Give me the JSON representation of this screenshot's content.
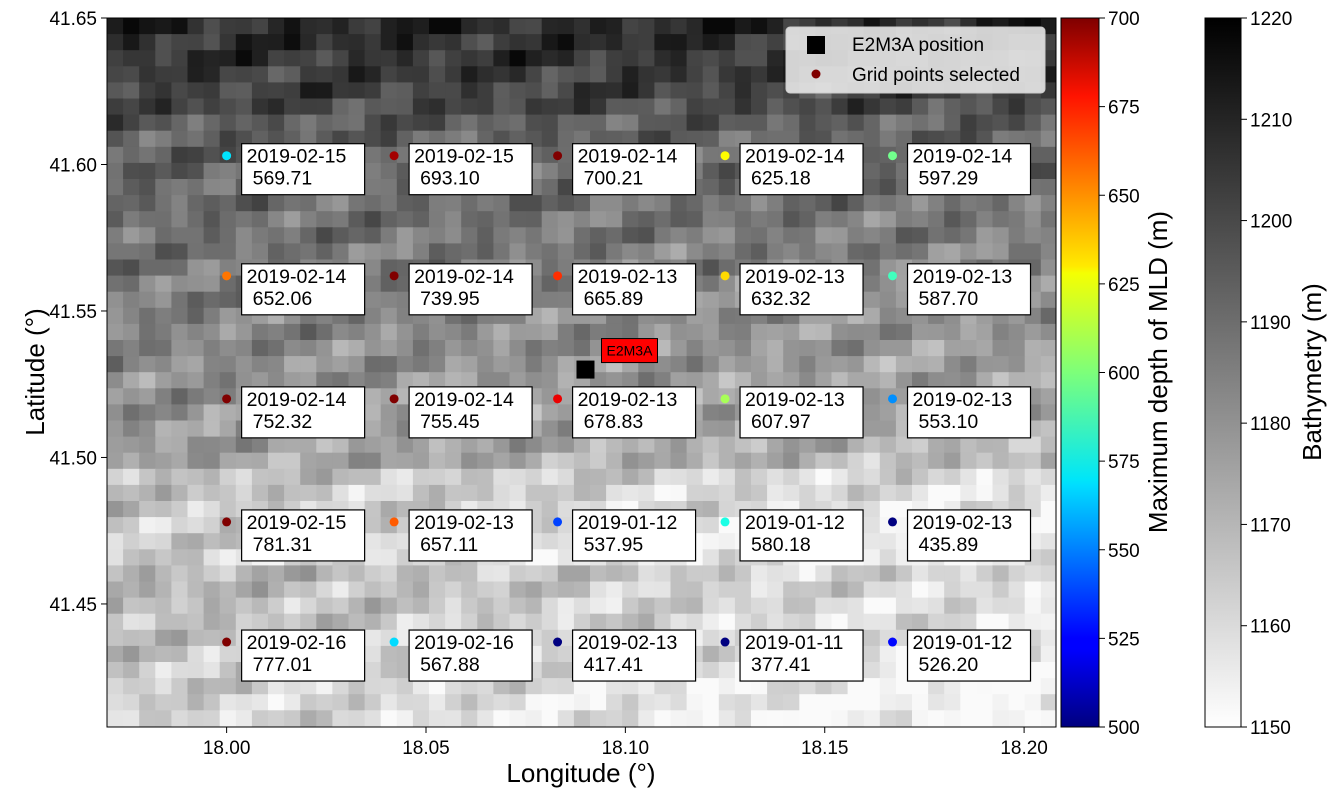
{
  "chart_data": {
    "type": "scatter",
    "title": "",
    "xlabel": "Longitude (°)",
    "ylabel": "Latitude (°)",
    "xlim": [
      17.97,
      18.208
    ],
    "ylim": [
      41.408,
      41.65
    ],
    "x_ticks": [
      "18.00",
      "18.05",
      "18.10",
      "18.15",
      "18.20"
    ],
    "y_ticks": [
      "41.45",
      "41.50",
      "41.55",
      "41.60",
      "41.65"
    ],
    "background": {
      "type": "heatmap",
      "colormap": "gray_r",
      "colorbar_label": "Bathymetry (m)",
      "range": [
        1150,
        1220
      ],
      "ticks": [
        "1150",
        "1160",
        "1170",
        "1180",
        "1190",
        "1200",
        "1210",
        "1220"
      ]
    },
    "colorbar_mld": {
      "label": "Maximum depth of MLD (m)",
      "colormap": "jet",
      "range": [
        500,
        700
      ],
      "ticks": [
        "500",
        "525",
        "550",
        "575",
        "600",
        "625",
        "650",
        "675",
        "700"
      ]
    },
    "legend": {
      "placement": "top-right",
      "entries": [
        {
          "label": "E2M3A position",
          "marker": "square",
          "color": "#000000"
        },
        {
          "label": "Grid points selected",
          "marker": "circle",
          "color": "#800000"
        }
      ]
    },
    "station": {
      "name": "E2M3A",
      "x": 18.09,
      "y": 41.53
    },
    "points": [
      {
        "x": 18.0,
        "y": 41.603,
        "date": "2019-02-15",
        "value": "569.71"
      },
      {
        "x": 18.042,
        "y": 41.603,
        "date": "2019-02-15",
        "value": "693.10"
      },
      {
        "x": 18.083,
        "y": 41.603,
        "date": "2019-02-14",
        "value": "700.21"
      },
      {
        "x": 18.125,
        "y": 41.603,
        "date": "2019-02-14",
        "value": "625.18"
      },
      {
        "x": 18.167,
        "y": 41.603,
        "date": "2019-02-14",
        "value": "597.29"
      },
      {
        "x": 18.0,
        "y": 41.562,
        "date": "2019-02-14",
        "value": "652.06"
      },
      {
        "x": 18.042,
        "y": 41.562,
        "date": "2019-02-14",
        "value": "739.95"
      },
      {
        "x": 18.083,
        "y": 41.562,
        "date": "2019-02-13",
        "value": "665.89"
      },
      {
        "x": 18.125,
        "y": 41.562,
        "date": "2019-02-13",
        "value": "632.32"
      },
      {
        "x": 18.167,
        "y": 41.562,
        "date": "2019-02-13",
        "value": "587.70"
      },
      {
        "x": 18.0,
        "y": 41.52,
        "date": "2019-02-14",
        "value": "752.32"
      },
      {
        "x": 18.042,
        "y": 41.52,
        "date": "2019-02-14",
        "value": "755.45"
      },
      {
        "x": 18.083,
        "y": 41.52,
        "date": "2019-02-13",
        "value": "678.83"
      },
      {
        "x": 18.125,
        "y": 41.52,
        "date": "2019-02-13",
        "value": "607.97"
      },
      {
        "x": 18.167,
        "y": 41.52,
        "date": "2019-02-13",
        "value": "553.10"
      },
      {
        "x": 18.0,
        "y": 41.478,
        "date": "2019-02-15",
        "value": "781.31"
      },
      {
        "x": 18.042,
        "y": 41.478,
        "date": "2019-02-13",
        "value": "657.11"
      },
      {
        "x": 18.083,
        "y": 41.478,
        "date": "2019-01-12",
        "value": "537.95"
      },
      {
        "x": 18.125,
        "y": 41.478,
        "date": "2019-01-12",
        "value": "580.18"
      },
      {
        "x": 18.167,
        "y": 41.478,
        "date": "2019-02-13",
        "value": "435.89"
      },
      {
        "x": 18.0,
        "y": 41.437,
        "date": "2019-02-16",
        "value": "777.01"
      },
      {
        "x": 18.042,
        "y": 41.437,
        "date": "2019-02-16",
        "value": "567.88"
      },
      {
        "x": 18.083,
        "y": 41.437,
        "date": "2019-02-13",
        "value": "417.41"
      },
      {
        "x": 18.125,
        "y": 41.437,
        "date": "2019-01-11",
        "value": "377.41"
      },
      {
        "x": 18.167,
        "y": 41.437,
        "date": "2019-01-12",
        "value": "526.20"
      }
    ]
  }
}
